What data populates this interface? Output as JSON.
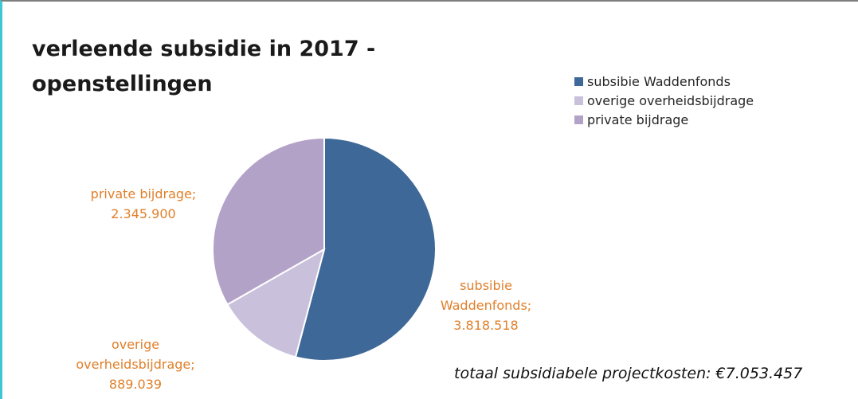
{
  "chart_data": {
    "type": "pie",
    "title_lines": [
      "verleende subsidie in 2017 -",
      "openstellingen"
    ],
    "legend_position": "top-right",
    "slices": [
      {
        "name": "subsibie Waddenfonds",
        "value": 3818518,
        "value_label": "3.818.518",
        "label_lines": [
          "subsibie",
          "Waddenfonds;",
          "3.818.518"
        ],
        "color": "#3e6897"
      },
      {
        "name": "overige overheidsbijdrage",
        "value": 889039,
        "value_label": "889.039",
        "label_lines": [
          "overige",
          "overheidsbijdrage;",
          "889.039"
        ],
        "color": "#c9c0dc"
      },
      {
        "name": "private bijdrage",
        "value": 2345900,
        "value_label": "2.345.900",
        "label_lines": [
          "private bijdrage;",
          "2.345.900"
        ],
        "color": "#b3a2c8"
      }
    ],
    "label_color": "#e07f2a",
    "footnote": "totaal subsidiabele projectkosten: €7.053.457"
  }
}
